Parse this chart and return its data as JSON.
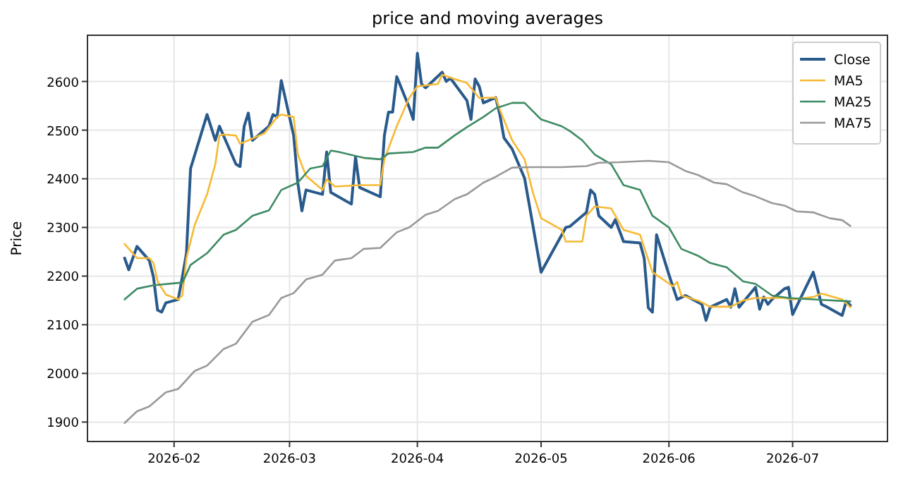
{
  "chart_data": {
    "type": "line",
    "title": "price and moving averages",
    "ylabel": "Price",
    "xlim": [
      "2026-01-11",
      "2026-07-24"
    ],
    "ylim": [
      1860,
      2695
    ],
    "xticks": [
      {
        "value": "2026-02-01",
        "label": "2026-02"
      },
      {
        "value": "2026-03-01",
        "label": "2026-03"
      },
      {
        "value": "2026-04-01",
        "label": "2026-04"
      },
      {
        "value": "2026-05-01",
        "label": "2026-05"
      },
      {
        "value": "2026-06-01",
        "label": "2026-06"
      },
      {
        "value": "2026-07-01",
        "label": "2026-07"
      }
    ],
    "yticks": [
      1900,
      2000,
      2100,
      2200,
      2300,
      2400,
      2500,
      2600
    ],
    "grid": true,
    "legend": "top right",
    "series": [
      {
        "name": "Close",
        "color": "#285a8c",
        "x": [
          "2026-01-20",
          "2026-01-21",
          "2026-01-23",
          "2026-01-26",
          "2026-01-27",
          "2026-01-28",
          "2026-01-29",
          "2026-01-30",
          "2026-02-02",
          "2026-02-03",
          "2026-02-04",
          "2026-02-05",
          "2026-02-09",
          "2026-02-11",
          "2026-02-12",
          "2026-02-16",
          "2026-02-17",
          "2026-02-18",
          "2026-02-19",
          "2026-02-20",
          "2026-02-24",
          "2026-02-25",
          "2026-02-26",
          "2026-02-27",
          "2026-03-02",
          "2026-03-03",
          "2026-03-04",
          "2026-03-05",
          "2026-03-09",
          "2026-03-10",
          "2026-03-11",
          "2026-03-16",
          "2026-03-17",
          "2026-03-18",
          "2026-03-23",
          "2026-03-24",
          "2026-03-25",
          "2026-03-26",
          "2026-03-27",
          "2026-03-30",
          "2026-03-31",
          "2026-04-01",
          "2026-04-02",
          "2026-04-03",
          "2026-04-07",
          "2026-04-08",
          "2026-04-09",
          "2026-04-13",
          "2026-04-14",
          "2026-04-15",
          "2026-04-16",
          "2026-04-17",
          "2026-04-20",
          "2026-04-21",
          "2026-04-22",
          "2026-04-24",
          "2026-04-27",
          "2026-04-29",
          "2026-05-01",
          "2026-05-07",
          "2026-05-08",
          "2026-05-11",
          "2026-05-12",
          "2026-05-13",
          "2026-05-14",
          "2026-05-15",
          "2026-05-18",
          "2026-05-19",
          "2026-05-21",
          "2026-05-25",
          "2026-05-26",
          "2026-05-27",
          "2026-05-28",
          "2026-05-29",
          "2026-06-01",
          "2026-06-03",
          "2026-06-05",
          "2026-06-09",
          "2026-06-10",
          "2026-06-11",
          "2026-06-15",
          "2026-06-16",
          "2026-06-17",
          "2026-06-18",
          "2026-06-22",
          "2026-06-23",
          "2026-06-24",
          "2026-06-25",
          "2026-06-26",
          "2026-06-29",
          "2026-06-30",
          "2026-07-01",
          "2026-07-06",
          "2026-07-08",
          "2026-07-09",
          "2026-07-13",
          "2026-07-14",
          "2026-07-15"
        ],
        "values": [
          2237,
          2213,
          2261,
          2232,
          2198,
          2130,
          2126,
          2145,
          2152,
          2198,
          2247,
          2421,
          2532,
          2479,
          2508,
          2430,
          2425,
          2508,
          2535,
          2479,
          2508,
          2532,
          2527,
          2602,
          2489,
          2392,
          2334,
          2377,
          2368,
          2455,
          2372,
          2348,
          2445,
          2382,
          2363,
          2489,
          2537,
          2537,
          2610,
          2547,
          2522,
          2658,
          2595,
          2587,
          2619,
          2600,
          2607,
          2561,
          2522,
          2605,
          2590,
          2556,
          2567,
          2532,
          2484,
          2461,
          2401,
          2305,
          2208,
          2300,
          2302,
          2324,
          2331,
          2377,
          2368,
          2324,
          2300,
          2316,
          2271,
          2268,
          2237,
          2135,
          2126,
          2285,
          2203,
          2152,
          2160,
          2142,
          2109,
          2136,
          2152,
          2136,
          2174,
          2136,
          2177,
          2132,
          2157,
          2142,
          2152,
          2174,
          2177,
          2121,
          2208,
          2142,
          2138,
          2119,
          2148,
          2140
        ]
      },
      {
        "name": "MA5",
        "color": "#f7b933",
        "x": [
          "2026-01-20",
          "2026-01-23",
          "2026-01-26",
          "2026-01-27",
          "2026-01-28",
          "2026-01-30",
          "2026-02-02",
          "2026-02-03",
          "2026-02-04",
          "2026-02-06",
          "2026-02-09",
          "2026-02-11",
          "2026-02-12",
          "2026-02-13",
          "2026-02-16",
          "2026-02-17",
          "2026-02-19",
          "2026-02-23",
          "2026-02-26",
          "2026-02-27",
          "2026-03-02",
          "2026-03-03",
          "2026-03-05",
          "2026-03-09",
          "2026-03-10",
          "2026-03-12",
          "2026-03-18",
          "2026-03-23",
          "2026-03-24",
          "2026-03-27",
          "2026-03-30",
          "2026-04-01",
          "2026-04-06",
          "2026-04-07",
          "2026-04-10",
          "2026-04-13",
          "2026-04-16",
          "2026-04-20",
          "2026-04-21",
          "2026-04-24",
          "2026-04-27",
          "2026-04-29",
          "2026-05-01",
          "2026-05-06",
          "2026-05-07",
          "2026-05-11",
          "2026-05-12",
          "2026-05-14",
          "2026-05-18",
          "2026-05-21",
          "2026-05-25",
          "2026-05-28",
          "2026-06-02",
          "2026-06-03",
          "2026-06-04",
          "2026-06-08",
          "2026-06-11",
          "2026-06-16",
          "2026-06-19",
          "2026-06-22",
          "2026-06-29",
          "2026-07-01",
          "2026-07-06",
          "2026-07-08",
          "2026-07-13",
          "2026-07-15"
        ],
        "values": [
          2266,
          2237,
          2237,
          2227,
          2189,
          2162,
          2152,
          2160,
          2237,
          2305,
          2368,
          2430,
          2489,
          2491,
          2489,
          2472,
          2479,
          2494,
          2527,
          2532,
          2527,
          2450,
          2406,
          2377,
          2399,
          2384,
          2387,
          2387,
          2440,
          2508,
          2566,
          2590,
          2595,
          2614,
          2605,
          2597,
          2566,
          2567,
          2542,
          2479,
          2440,
          2372,
          2319,
          2295,
          2271,
          2271,
          2324,
          2343,
          2339,
          2295,
          2285,
          2208,
          2179,
          2188,
          2160,
          2150,
          2137,
          2137,
          2150,
          2155,
          2155,
          2152,
          2157,
          2164,
          2152,
          2136
        ]
      },
      {
        "name": "MA25",
        "color": "#3d8b63",
        "x": [
          "2026-01-20",
          "2026-01-23",
          "2026-01-27",
          "2026-02-02",
          "2026-02-03",
          "2026-02-05",
          "2026-02-09",
          "2026-02-13",
          "2026-02-16",
          "2026-02-20",
          "2026-02-24",
          "2026-02-27",
          "2026-03-03",
          "2026-03-06",
          "2026-03-09",
          "2026-03-11",
          "2026-03-13",
          "2026-03-19",
          "2026-03-23",
          "2026-03-25",
          "2026-03-31",
          "2026-04-03",
          "2026-04-06",
          "2026-04-10",
          "2026-04-13",
          "2026-04-17",
          "2026-04-20",
          "2026-04-24",
          "2026-04-27",
          "2026-05-01",
          "2026-05-06",
          "2026-05-08",
          "2026-05-11",
          "2026-05-14",
          "2026-05-18",
          "2026-05-21",
          "2026-05-25",
          "2026-05-28",
          "2026-06-01",
          "2026-06-04",
          "2026-06-08",
          "2026-06-11",
          "2026-06-15",
          "2026-06-19",
          "2026-06-22",
          "2026-06-26",
          "2026-06-30",
          "2026-07-06",
          "2026-07-15"
        ],
        "values": [
          2152,
          2174,
          2181,
          2186,
          2186,
          2223,
          2247,
          2285,
          2295,
          2324,
          2335,
          2377,
          2392,
          2421,
          2426,
          2458,
          2455,
          2443,
          2440,
          2452,
          2455,
          2464,
          2464,
          2489,
          2506,
          2527,
          2545,
          2556,
          2556,
          2522,
          2508,
          2498,
          2479,
          2450,
          2430,
          2387,
          2377,
          2324,
          2300,
          2256,
          2242,
          2227,
          2218,
          2189,
          2184,
          2160,
          2155,
          2152,
          2148
        ]
      },
      {
        "name": "MA75",
        "color": "#999999",
        "x": [
          "2026-01-20",
          "2026-01-23",
          "2026-01-26",
          "2026-01-30",
          "2026-02-02",
          "2026-02-06",
          "2026-02-09",
          "2026-02-13",
          "2026-02-16",
          "2026-02-20",
          "2026-02-24",
          "2026-02-27",
          "2026-03-02",
          "2026-03-05",
          "2026-03-09",
          "2026-03-12",
          "2026-03-16",
          "2026-03-19",
          "2026-03-23",
          "2026-03-27",
          "2026-03-30",
          "2026-04-03",
          "2026-04-06",
          "2026-04-10",
          "2026-04-13",
          "2026-04-17",
          "2026-04-20",
          "2026-04-24",
          "2026-04-29",
          "2026-05-06",
          "2026-05-12",
          "2026-05-15",
          "2026-05-20",
          "2026-05-27",
          "2026-06-01",
          "2026-06-05",
          "2026-06-08",
          "2026-06-12",
          "2026-06-15",
          "2026-06-19",
          "2026-06-22",
          "2026-06-26",
          "2026-06-29",
          "2026-07-02",
          "2026-07-06",
          "2026-07-07",
          "2026-07-10",
          "2026-07-13",
          "2026-07-15"
        ],
        "values": [
          1898,
          1922,
          1932,
          1961,
          1968,
          2005,
          2016,
          2050,
          2061,
          2106,
          2120,
          2155,
          2165,
          2193,
          2203,
          2232,
          2237,
          2256,
          2258,
          2290,
          2300,
          2326,
          2334,
          2358,
          2368,
          2392,
          2404,
          2423,
          2424,
          2424,
          2426,
          2433,
          2434,
          2437,
          2434,
          2416,
          2408,
          2392,
          2389,
          2372,
          2364,
          2350,
          2345,
          2333,
          2331,
          2328,
          2319,
          2315,
          2303
        ]
      }
    ]
  }
}
